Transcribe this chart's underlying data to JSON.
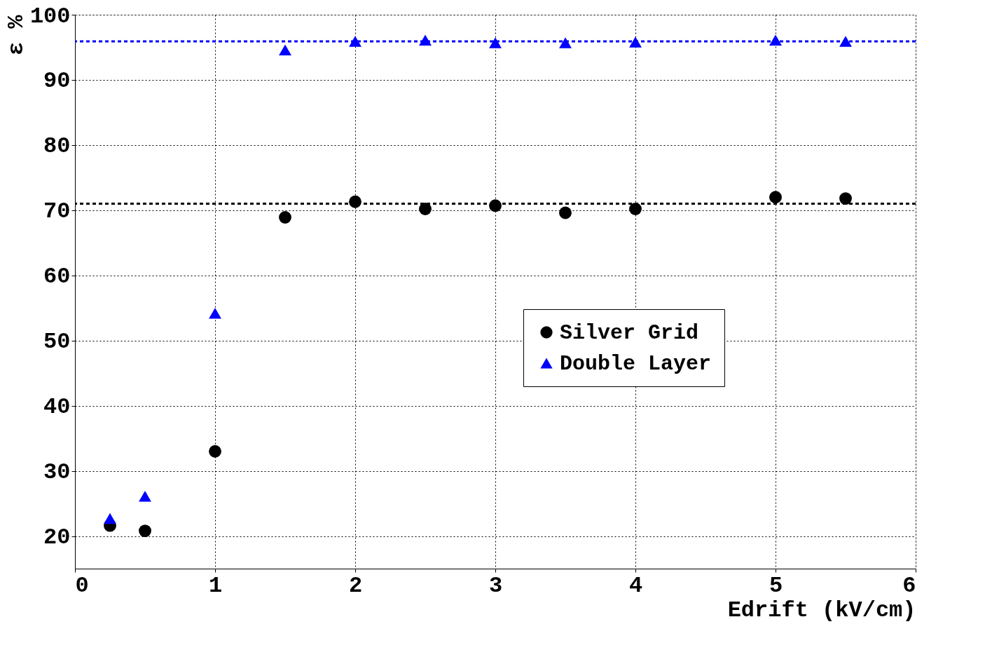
{
  "chart_data": {
    "type": "scatter",
    "xlabel": "Edrift (kV/cm)",
    "ylabel": "ε %",
    "xlim": [
      0,
      6
    ],
    "ylim": [
      15,
      100
    ],
    "xticks": [
      0,
      1,
      2,
      3,
      4,
      5,
      6
    ],
    "yticks": [
      20,
      30,
      40,
      50,
      60,
      70,
      80,
      90,
      100
    ],
    "grid": true,
    "legend": "right",
    "series": [
      {
        "name": "Silver Grid",
        "color": "#000000",
        "marker": "circle",
        "x": [
          0.25,
          0.5,
          1,
          1.5,
          2,
          2.5,
          3,
          3.5,
          4,
          5,
          5.5
        ],
        "values": [
          21.6,
          20.8,
          33.0,
          68.9,
          71.3,
          70.2,
          70.7,
          69.6,
          70.2,
          72.0,
          71.8
        ]
      },
      {
        "name": "Double Layer",
        "color": "#0000ff",
        "marker": "triangle",
        "x": [
          0.25,
          0.5,
          1,
          1.5,
          2,
          2.5,
          3,
          3.5,
          4,
          5,
          5.5
        ],
        "values": [
          22.7,
          26.1,
          54.2,
          94.6,
          95.9,
          96.1,
          95.7,
          95.7,
          95.8,
          96.1,
          95.9
        ]
      }
    ],
    "ref_lines": [
      {
        "axis": "y",
        "value": 95.9,
        "color": "#0000ff",
        "line_style": "dashed"
      },
      {
        "axis": "y",
        "value": 71.0,
        "color": "#000000",
        "line_style": "dashed"
      }
    ]
  }
}
